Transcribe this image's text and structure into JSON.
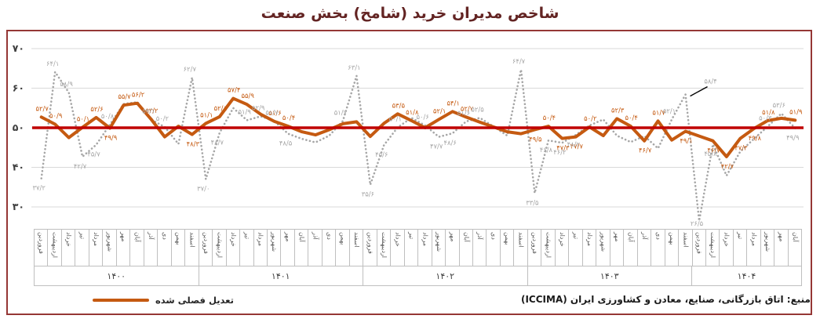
{
  "title": "شاخص مدیران خرید (شامخ) بخش صنعت",
  "legend": {
    "adjusted_label": "تعدیل فصلی شده"
  },
  "source": "منبع: اتاق بازرگانی، صنایع، معادن و کشاورزی ایران (ICCIMA)",
  "colors": {
    "adjusted_line": "#C55A11",
    "raw_line": "#A6A6A6",
    "reference_line": "#C00000",
    "frame_border": "#953735",
    "title_text": "#632423",
    "gridline": "#D9D9D9"
  },
  "chart_data": {
    "type": "line",
    "title": "شاخص مدیران خرید (شامخ) بخش صنعت",
    "xlabel": "",
    "ylabel": "",
    "ylim": [
      30,
      70
    ],
    "grid": true,
    "legend_position": "bottom-left",
    "y_ticks": [
      {
        "value": 70,
        "label": "۷۰"
      },
      {
        "value": 60,
        "label": "۶۰"
      },
      {
        "value": 50,
        "label": "۵۰"
      },
      {
        "value": 40,
        "label": "۴۰"
      },
      {
        "value": 30,
        "label": "۳۰"
      }
    ],
    "month_names": [
      "فروردین",
      "اردیبهشت",
      "خرداد",
      "تیر",
      "مرداد",
      "شهریور",
      "مهر",
      "آبان",
      "آذر",
      "دی",
      "بهمن",
      "اسفند"
    ],
    "years": [
      {
        "label": "۱۴۰۰",
        "months": 12
      },
      {
        "label": "۱۴۰۱",
        "months": 12
      },
      {
        "label": "۱۴۰۲",
        "months": 12
      },
      {
        "label": "۱۴۰۳",
        "months": 12
      },
      {
        "label": "۱۴۰۴",
        "months": 8
      }
    ],
    "categories": [
      "فروردین",
      "اردیبهشت",
      "خرداد",
      "تیر",
      "مرداد",
      "شهریور",
      "مهر",
      "آبان",
      "آذر",
      "دی",
      "بهمن",
      "اسفند",
      "فروردین",
      "اردیبهشت",
      "خرداد",
      "تیر",
      "مرداد",
      "شهریور",
      "مهر",
      "آبان",
      "آذر",
      "دی",
      "بهمن",
      "اسفند",
      "فروردین",
      "اردیبهشت",
      "خرداد",
      "تیر",
      "مرداد",
      "شهریور",
      "مهر",
      "آبان",
      "آذر",
      "دی",
      "بهمن",
      "اسفند",
      "فروردین",
      "اردیبهشت",
      "خرداد",
      "تیر",
      "مرداد",
      "شهریور",
      "مهر",
      "آبان",
      "آذر",
      "دی",
      "بهمن",
      "اسفند",
      "فروردین",
      "اردیبهشت",
      "خرداد",
      "تیر",
      "مرداد",
      "شهریور",
      "مهر",
      "آبان"
    ],
    "reference_line": {
      "value": 50,
      "color": "#C00000"
    },
    "annotation": {
      "series_index": 1,
      "month_index": 47,
      "label": "۵۸/۴"
    },
    "series": [
      {
        "name": "تعدیل فصلی شده",
        "style": "solid",
        "color": "#C55A11",
        "values": [
          52.7,
          50.9,
          47.5,
          50.1,
          52.6,
          49.9,
          55.7,
          56.2,
          52.2,
          47.7,
          50.4,
          48.3,
          51.1,
          52.8,
          57.4,
          55.9,
          53.4,
          51.6,
          50.4,
          49.0,
          48.2,
          49.5,
          51.0,
          51.5,
          47.8,
          51.1,
          53.5,
          51.8,
          50.0,
          52.1,
          54.1,
          52.7,
          51.4,
          50.2,
          49.0,
          48.5,
          49.5,
          50.4,
          47.3,
          47.7,
          50.2,
          48.0,
          52.3,
          50.4,
          46.7,
          51.7,
          46.9,
          49.1,
          47.9,
          46.7,
          42.7,
          47.3,
          49.8,
          51.8,
          52.4,
          51.9
        ],
        "labels": [
          "۵۲/۷",
          "۵۰/۹",
          null,
          "۵۰/۱",
          "۵۲/۶",
          "۴۹/۹",
          "۵۵/۷",
          "۵۶/۲",
          "۵۲/۲",
          null,
          null,
          "۴۸/۳",
          "۵۱/۱",
          "۵۲/۸",
          "۵۷/۴",
          "۵۵/۹",
          null,
          "۵۱/۶",
          "۵۰/۴",
          null,
          null,
          null,
          null,
          null,
          null,
          null,
          "۵۳/۵",
          "۵۱/۸",
          null,
          "۵۲/۱",
          "۵۴/۱",
          "۵۲/۷",
          null,
          null,
          null,
          null,
          "۴۹/۵",
          "۵۰/۴",
          "۴۷/۳",
          "۴۷/۷",
          "۵۰/۲",
          null,
          "۵۲/۳",
          "۵۰/۴",
          "۴۶/۷",
          "۵۱/۷",
          null,
          "۴۹/۱",
          null,
          "۴۶/۷",
          "۴۲/۷",
          "۴۷/۳",
          "۴۹/۸",
          "۵۱/۸",
          null,
          "۵۱/۹"
        ]
      },
      {
        "name": "شامخ",
        "style": "dotted",
        "color": "#A6A6A6",
        "values": [
          37.2,
          64.1,
          58.9,
          42.7,
          45.7,
          50.8,
          56.0,
          56.5,
          52.1,
          50.2,
          45.9,
          62.7,
          37.0,
          48.7,
          55.0,
          51.9,
          52.9,
          51.7,
          48.5,
          47.2,
          46.3,
          48.0,
          51.7,
          63.1,
          35.6,
          45.6,
          50.1,
          52.5,
          50.6,
          47.7,
          48.6,
          51.6,
          52.5,
          50.3,
          48.0,
          64.7,
          33.5,
          46.8,
          46.2,
          48.2,
          50.6,
          52.1,
          48.0,
          46.4,
          47.9,
          44.8,
          52.1,
          58.4,
          26.5,
          45.8,
          37.9,
          44.0,
          47.2,
          50.3,
          53.6,
          49.9
        ],
        "labels": [
          "۳۷/۲",
          "۶۴/۱",
          "۵۸/۹",
          "۴۲/۷",
          "۴۵/۷",
          "۵۰/۸",
          null,
          null,
          "۵۲/۱",
          "۵۰/۲",
          null,
          "۶۲/۷",
          "۳۷/۰",
          "۴۸/۷",
          null,
          "۵۱/۹",
          "۵۲/۹",
          "۵۱/۷",
          "۴۸/۵",
          null,
          null,
          null,
          "۵۱/۷",
          "۶۳/۱",
          "۳۵/۶",
          "۴۵/۶",
          "۵۰/۱",
          null,
          "۵۰/۶",
          "۴۷/۷",
          "۴۸/۶",
          "۵۱/۶",
          "۵۲/۵",
          null,
          null,
          "۶۴/۷",
          "۳۳/۵",
          "۴۶/۸",
          "۴۶/۲",
          "۴۸/۲",
          null,
          null,
          null,
          null,
          null,
          null,
          "۵۲/۱",
          "۵۸/۴",
          "۲۶/۵",
          "۴۵/۸",
          null,
          null,
          null,
          "۵۰/۳",
          "۵۳/۶",
          "۴۹/۹"
        ]
      }
    ]
  }
}
